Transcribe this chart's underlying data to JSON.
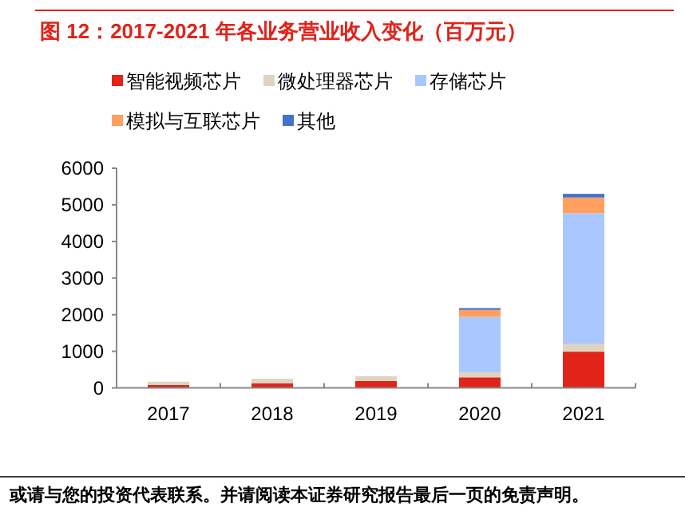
{
  "chart_data": {
    "type": "bar",
    "title": "图 12：2017-2021 年各业务营业收入变化（百万元）",
    "categories": [
      "2017",
      "2018",
      "2019",
      "2020",
      "2021"
    ],
    "stacked": true,
    "legend": "top",
    "grid": false,
    "ylim": [
      0,
      6000
    ],
    "yticks": [
      0,
      1000,
      2000,
      3000,
      4000,
      5000,
      6000
    ],
    "series": [
      {
        "name": "智能视频芯片",
        "color": "#e2231a",
        "values": [
          80,
          130,
          190,
          290,
          990
        ]
      },
      {
        "name": "微处理器芯片",
        "color": "#ddd5c0",
        "values": [
          90,
          120,
          130,
          140,
          220
        ]
      },
      {
        "name": "存储芯片",
        "color": "#a8c8ff",
        "values": [
          null,
          null,
          null,
          1510,
          3560
        ]
      },
      {
        "name": "模拟与互联芯片",
        "color": "#ffa060",
        "values": [
          null,
          null,
          null,
          190,
          430
        ]
      },
      {
        "name": "其他",
        "color": "#4472c4",
        "values": [
          null,
          null,
          null,
          50,
          100
        ]
      }
    ],
    "annotations": [
      "或请与您的投资代表联系。并请阅读本证券研究报告最后一页的免责声明。"
    ]
  }
}
